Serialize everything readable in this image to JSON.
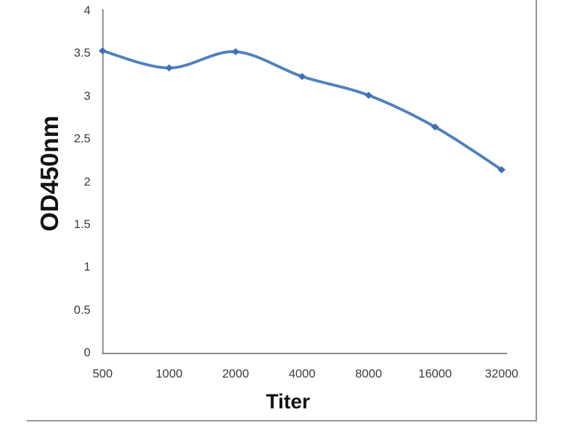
{
  "chart_data": {
    "type": "line",
    "title": "",
    "xlabel": "Titer",
    "ylabel": "OD450nm",
    "categories": [
      "500",
      "1000",
      "2000",
      "4000",
      "8000",
      "16000",
      "32000"
    ],
    "series": [
      {
        "name": "OD450nm",
        "values": [
          3.53,
          3.33,
          3.52,
          3.23,
          3.01,
          2.64,
          2.14
        ],
        "color": "#4f81bd",
        "marker": "diamond",
        "marker_color": "#4170b2"
      }
    ],
    "y_ticks": [
      "0",
      "0.5",
      "1",
      "1.5",
      "2",
      "2.5",
      "3",
      "3.5",
      "4"
    ],
    "ylim": [
      0,
      4
    ],
    "grid": false,
    "legend": false,
    "line_smooth": true
  },
  "colors": {
    "axis": "#8a8a8a",
    "tick_text": "#3a3a3a",
    "title_text": "#121212",
    "frame_border": "#919191",
    "background": "#ffffff"
  }
}
